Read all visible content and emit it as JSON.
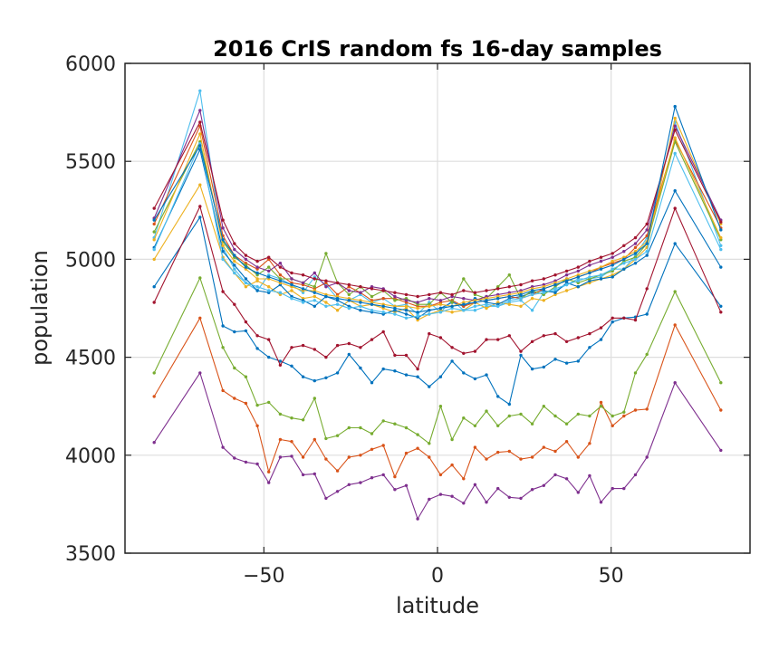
{
  "chart_data": {
    "type": "line",
    "title": "2016 CrIS random fs 16-day samples",
    "xlabel": "latitude",
    "ylabel": "population",
    "xlim": [
      -90,
      90
    ],
    "ylim": [
      3500,
      6000
    ],
    "xticks": [
      -50,
      0,
      50
    ],
    "yticks": [
      3500,
      4000,
      4500,
      5000,
      5500,
      6000
    ],
    "xtick_labels": [
      "−50",
      "0",
      "50"
    ],
    "ytick_labels": [
      "3500",
      "4000",
      "4500",
      "5000",
      "5500",
      "6000"
    ],
    "grid": true,
    "legend": "none",
    "x": [
      -81.6,
      -68.4,
      -61.8,
      -58.5,
      -55.2,
      -51.9,
      -48.6,
      -45.3,
      -42.0,
      -38.7,
      -35.4,
      -32.1,
      -28.8,
      -25.5,
      -22.2,
      -18.9,
      -15.6,
      -12.3,
      -9.0,
      -5.7,
      -2.4,
      0.9,
      4.2,
      7.5,
      10.8,
      14.1,
      17.4,
      20.7,
      24.0,
      27.3,
      30.6,
      33.9,
      37.2,
      40.5,
      43.8,
      47.1,
      50.4,
      53.7,
      57.0,
      60.3,
      68.4,
      81.6
    ],
    "series": [
      {
        "color": "#7e2f8e",
        "values": [
          4065,
          4420,
          4040,
          3985,
          3965,
          3955,
          3860,
          3990,
          3995,
          3900,
          3905,
          3780,
          3815,
          3850,
          3860,
          3885,
          3900,
          3825,
          3845,
          3675,
          3775,
          3800,
          3790,
          3755,
          3850,
          3760,
          3830,
          3785,
          3780,
          3825,
          3845,
          3900,
          3880,
          3810,
          3895,
          3760,
          3830,
          3830,
          3900,
          3990,
          4370,
          4025
        ]
      },
      {
        "color": "#d95319",
        "values": [
          4300,
          4700,
          4330,
          4290,
          4265,
          4150,
          3915,
          4080,
          4070,
          3990,
          4080,
          3980,
          3920,
          3990,
          4000,
          4030,
          4050,
          3890,
          4010,
          4035,
          3990,
          3900,
          3950,
          3880,
          4040,
          3980,
          4015,
          4020,
          3980,
          3990,
          4040,
          4020,
          4070,
          3990,
          4060,
          4270,
          4150,
          4200,
          4230,
          4235,
          4665,
          4230
        ]
      },
      {
        "color": "#77ac30",
        "values": [
          4420,
          4905,
          4550,
          4445,
          4400,
          4255,
          4270,
          4210,
          4190,
          4180,
          4290,
          4085,
          4100,
          4140,
          4140,
          4110,
          4175,
          4160,
          4140,
          4105,
          4060,
          4250,
          4080,
          4190,
          4150,
          4225,
          4150,
          4200,
          4210,
          4160,
          4250,
          4200,
          4160,
          4210,
          4200,
          4250,
          4200,
          4220,
          4420,
          4515,
          4835,
          4370
        ]
      },
      {
        "color": "#0072bd",
        "values": [
          4860,
          5215,
          4660,
          4630,
          4635,
          4545,
          4500,
          4480,
          4455,
          4400,
          4380,
          4395,
          4420,
          4515,
          4445,
          4370,
          4440,
          4430,
          4410,
          4400,
          4350,
          4400,
          4480,
          4420,
          4390,
          4410,
          4300,
          4260,
          4510,
          4440,
          4450,
          4490,
          4470,
          4480,
          4550,
          4590,
          4680,
          4700,
          4705,
          4720,
          5080,
          4760
        ]
      },
      {
        "color": "#a2142f",
        "values": [
          4780,
          5270,
          4835,
          4770,
          4680,
          4610,
          4590,
          4460,
          4550,
          4560,
          4540,
          4500,
          4560,
          4570,
          4550,
          4590,
          4630,
          4510,
          4510,
          4440,
          4620,
          4600,
          4550,
          4520,
          4530,
          4590,
          4590,
          4610,
          4530,
          4580,
          4610,
          4620,
          4580,
          4600,
          4620,
          4650,
          4700,
          4700,
          4690,
          4850,
          5260,
          4730
        ]
      },
      {
        "color": "#4dbeee",
        "values": [
          5110,
          5860,
          5060,
          4950,
          4880,
          4840,
          4920,
          4900,
          4870,
          4830,
          4910,
          4870,
          4800,
          4790,
          4820,
          4780,
          4800,
          4760,
          4770,
          4720,
          4780,
          4730,
          4790,
          4740,
          4740,
          4760,
          4760,
          4780,
          4790,
          4740,
          4830,
          4840,
          4870,
          4900,
          4900,
          4910,
          4950,
          4950,
          5020,
          5110,
          5700,
          5070
        ]
      },
      {
        "color": "#edb120",
        "values": [
          5000,
          5380,
          5010,
          4930,
          4860,
          4890,
          4860,
          4820,
          4840,
          4800,
          4810,
          4780,
          4740,
          4790,
          4760,
          4770,
          4750,
          4730,
          4750,
          4690,
          4720,
          4740,
          4730,
          4740,
          4780,
          4750,
          4780,
          4770,
          4760,
          4800,
          4790,
          4820,
          4840,
          4860,
          4880,
          4900,
          4920,
          4950,
          5000,
          5060,
          5720,
          5180
        ]
      },
      {
        "color": "#0072bd",
        "values": [
          5060,
          5560,
          5040,
          4970,
          4900,
          4840,
          4830,
          4870,
          4810,
          4790,
          4760,
          4810,
          4790,
          4760,
          4740,
          4730,
          4720,
          4740,
          4720,
          4700,
          4740,
          4750,
          4780,
          4760,
          4800,
          4780,
          4770,
          4800,
          4810,
          4830,
          4840,
          4830,
          4880,
          4860,
          4890,
          4900,
          4910,
          4950,
          4980,
          5020,
          5350,
          4960
        ]
      },
      {
        "color": "#d95319",
        "values": [
          5180,
          5680,
          5120,
          5020,
          4980,
          4950,
          5000,
          4920,
          4880,
          4870,
          4850,
          4880,
          4820,
          4860,
          4830,
          4790,
          4800,
          4800,
          4780,
          4760,
          4760,
          4780,
          4790,
          4760,
          4780,
          4790,
          4800,
          4810,
          4800,
          4820,
          4850,
          4870,
          4890,
          4910,
          4930,
          4960,
          4980,
          5000,
          5060,
          5120,
          5610,
          5160
        ]
      },
      {
        "color": "#77ac30",
        "values": [
          5140,
          5600,
          5090,
          5010,
          4970,
          4920,
          4960,
          4900,
          4900,
          4880,
          4860,
          5030,
          4880,
          4820,
          4860,
          4810,
          4840,
          4790,
          4800,
          4770,
          4770,
          4830,
          4780,
          4900,
          4820,
          4800,
          4860,
          4920,
          4800,
          4840,
          4820,
          4860,
          4900,
          4880,
          4900,
          4920,
          4940,
          4990,
          5010,
          5080,
          5600,
          5100
        ]
      },
      {
        "color": "#7e2f8e",
        "values": [
          5210,
          5760,
          5160,
          5050,
          5000,
          4960,
          4940,
          4980,
          4900,
          4880,
          4930,
          4860,
          4880,
          4840,
          4830,
          4860,
          4850,
          4810,
          4790,
          4780,
          4800,
          4790,
          4810,
          4800,
          4790,
          4810,
          4820,
          4830,
          4840,
          4860,
          4870,
          4890,
          4920,
          4940,
          4970,
          4990,
          5010,
          5040,
          5080,
          5150,
          5680,
          5200
        ]
      },
      {
        "color": "#4dbeee",
        "values": [
          5050,
          5590,
          5000,
          4930,
          4880,
          4860,
          4840,
          4830,
          4800,
          4780,
          4790,
          4760,
          4770,
          4750,
          4760,
          4740,
          4730,
          4720,
          4700,
          4710,
          4720,
          4730,
          4750,
          4740,
          4760,
          4770,
          4760,
          4790,
          4800,
          4820,
          4830,
          4850,
          4870,
          4890,
          4910,
          4920,
          4950,
          4980,
          5000,
          5040,
          5540,
          5050
        ]
      },
      {
        "color": "#a2142f",
        "values": [
          5260,
          5700,
          5200,
          5080,
          5020,
          4990,
          5010,
          4960,
          4930,
          4920,
          4900,
          4890,
          4880,
          4870,
          4860,
          4850,
          4840,
          4830,
          4820,
          4810,
          4820,
          4830,
          4820,
          4840,
          4830,
          4840,
          4850,
          4860,
          4870,
          4890,
          4900,
          4920,
          4940,
          4960,
          4990,
          5010,
          5030,
          5070,
          5110,
          5180,
          5660,
          5190
        ]
      },
      {
        "color": "#edb120",
        "values": [
          5100,
          5640,
          5070,
          4990,
          4950,
          4900,
          4900,
          4880,
          4860,
          4840,
          4840,
          4820,
          4810,
          4800,
          4790,
          4780,
          4770,
          4760,
          4760,
          4750,
          4760,
          4770,
          4760,
          4780,
          4790,
          4800,
          4810,
          4820,
          4830,
          4850,
          4860,
          4880,
          4900,
          4920,
          4940,
          4960,
          4990,
          5010,
          5040,
          5090,
          5620,
          5110
        ]
      },
      {
        "color": "#0072bd",
        "values": [
          5200,
          5580,
          5100,
          5020,
          4960,
          4930,
          4910,
          4890,
          4870,
          4850,
          4830,
          4810,
          4800,
          4790,
          4780,
          4770,
          4760,
          4750,
          4740,
          4730,
          4740,
          4750,
          4760,
          4770,
          4780,
          4790,
          4800,
          4810,
          4820,
          4840,
          4850,
          4870,
          4890,
          4910,
          4930,
          4950,
          4970,
          5000,
          5030,
          5080,
          5780,
          5150
        ]
      }
    ]
  }
}
